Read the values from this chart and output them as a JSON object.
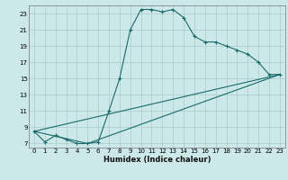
{
  "title": "",
  "xlabel": "Humidex (Indice chaleur)",
  "bg_color": "#cce8e8",
  "grid_color": "#b0d0d0",
  "line_color": "#1a6b6b",
  "xlim": [
    -0.5,
    23.5
  ],
  "ylim": [
    6.5,
    24.0
  ],
  "xticks": [
    0,
    1,
    2,
    3,
    4,
    5,
    6,
    7,
    8,
    9,
    10,
    11,
    12,
    13,
    14,
    15,
    16,
    17,
    18,
    19,
    20,
    21,
    22,
    23
  ],
  "yticks": [
    7,
    9,
    11,
    13,
    15,
    17,
    19,
    21,
    23
  ],
  "series0_x": [
    0,
    1,
    2,
    3,
    4,
    5,
    6,
    7,
    8,
    9,
    10,
    11,
    12,
    13,
    14,
    15,
    16,
    17,
    18,
    19,
    20,
    21,
    22,
    23
  ],
  "series0_y": [
    8.5,
    7.2,
    8.0,
    7.5,
    7.0,
    7.0,
    7.2,
    11.0,
    15.0,
    21.0,
    23.5,
    23.5,
    23.2,
    23.5,
    22.5,
    20.2,
    19.5,
    19.5,
    19.0,
    18.5,
    18.0,
    17.0,
    15.5,
    15.5
  ],
  "series1_x": [
    0,
    5,
    23
  ],
  "series1_y": [
    8.5,
    7.0,
    15.5
  ],
  "series2_x": [
    0,
    23
  ],
  "series2_y": [
    8.5,
    15.5
  ]
}
